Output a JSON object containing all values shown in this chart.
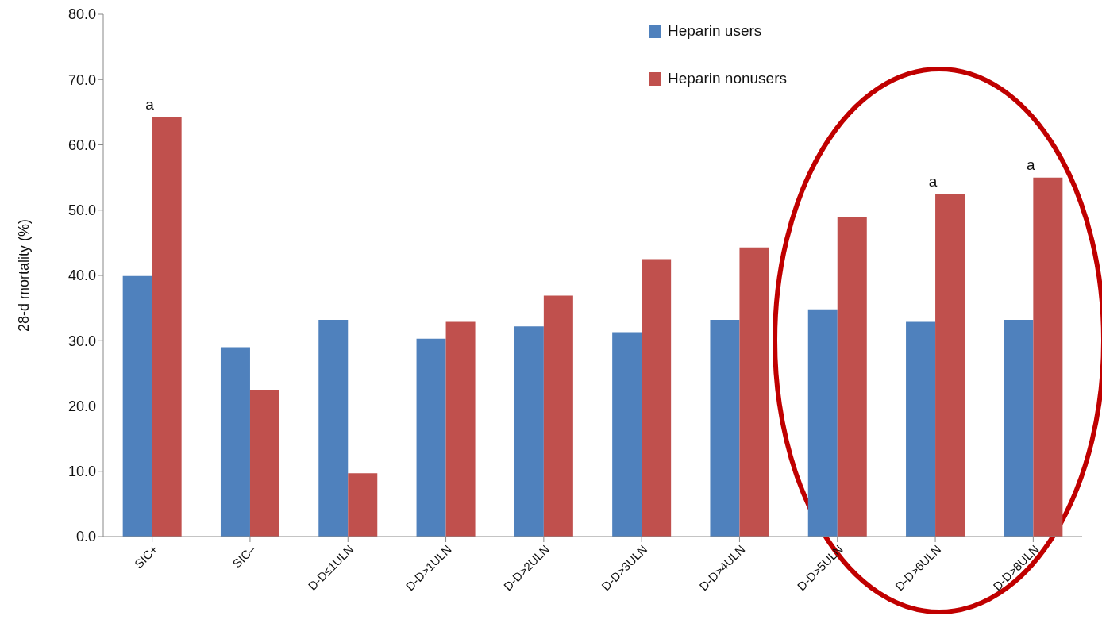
{
  "chart_data": {
    "type": "bar",
    "ylabel": "28-d mortality (%)",
    "categories": [
      "SIC+",
      "SIC–",
      "D-D≤1ULN",
      "D-D>1ULN",
      "D-D>2ULN",
      "D-D>3ULN",
      "D-D>4ULN",
      "D-D>5ULN",
      "D-D>6ULN",
      "D-D>8ULN"
    ],
    "series": [
      {
        "name": "Heparin users",
        "color": "#4f81bd",
        "values": [
          39.9,
          29.0,
          33.2,
          30.3,
          32.2,
          31.3,
          33.2,
          34.8,
          32.9,
          33.2
        ]
      },
      {
        "name": "Heparin nonusers",
        "color": "#c0504d",
        "values": [
          64.2,
          22.5,
          9.7,
          32.9,
          36.9,
          42.5,
          44.3,
          48.9,
          52.4,
          55.0
        ]
      }
    ],
    "ylim": [
      0,
      80
    ],
    "yticks": [
      {
        "value": 0,
        "label": "0.0"
      },
      {
        "value": 10,
        "label": "10.0"
      },
      {
        "value": 20,
        "label": "20.0"
      },
      {
        "value": 30,
        "label": "30.0"
      },
      {
        "value": 40,
        "label": "40.0"
      },
      {
        "value": 50,
        "label": "50.0"
      },
      {
        "value": 60,
        "label": "60.0"
      },
      {
        "value": 70,
        "label": "70.0"
      },
      {
        "value": 80,
        "label": "80.0"
      }
    ],
    "grid": false,
    "legend": "top right",
    "annotations": [
      {
        "text": "a",
        "x": "SIC+",
        "y": 64.2
      },
      {
        "text": "a",
        "x": "D-D>6ULN",
        "y": 52.4
      },
      {
        "text": "a",
        "x": "D-D>8ULN",
        "y": 55.0
      }
    ]
  }
}
